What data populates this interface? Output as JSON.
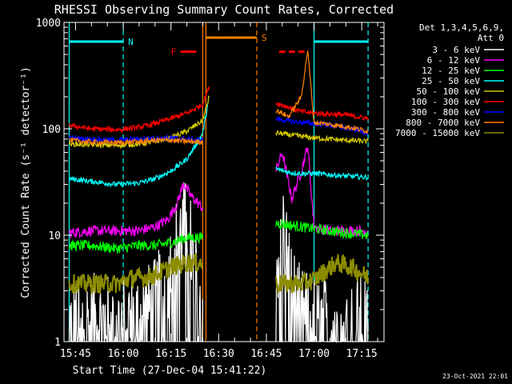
{
  "chart_data": {
    "type": "line",
    "title": "RHESSI Observing Summary Count Rates, Corrected",
    "xlabel": "Start Time (27-Dec-04 15:41:22)",
    "ylabel": "Corrected Count Rate (s⁻¹ detector⁻¹)",
    "y_scale": "log",
    "ylim": [
      1,
      1000
    ],
    "xlim": [
      "15:41:22",
      "17:22:00"
    ],
    "x_ticks": [
      "15:45",
      "16:00",
      "16:15",
      "16:30",
      "16:45",
      "17:00",
      "17:15"
    ],
    "y_ticks": [
      "1",
      "10",
      "100",
      "1000"
    ],
    "legend_title": [
      "Det 1,3,4,5,6,9,",
      "Att 0"
    ],
    "legend_position": "right",
    "footer": "23-Oct-2021 22:01",
    "series": [
      {
        "name": "3 - 6 keV",
        "color": "#ffffff",
        "segments": [
          {
            "t": [
              "15:43",
              "15:50",
              "15:58",
              "16:05",
              "16:10",
              "16:14",
              "16:17",
              "16:20",
              "16:23",
              "16:25"
            ],
            "v": [
              1.5,
              1.6,
              1.5,
              1.7,
              2.2,
              4.0,
              9.0,
              14.0,
              3.5,
              2.5
            ]
          },
          {
            "t": [
              "16:48",
              "16:50",
              "16:53",
              "16:56",
              "16:58",
              "17:00",
              "17:05",
              "17:10",
              "17:17"
            ],
            "v": [
              4.0,
              15.0,
              3.0,
              1.8,
              1.6,
              1.5,
              1.6,
              1.5,
              1.5
            ]
          }
        ]
      },
      {
        "name": "6 - 12 keV",
        "color": "#ff00ff",
        "segments": [
          {
            "t": [
              "15:43",
              "15:50",
              "15:58",
              "16:05",
              "16:10",
              "16:14",
              "16:17",
              "16:19",
              "16:21",
              "16:25"
            ],
            "v": [
              10.5,
              11.0,
              11.0,
              11.0,
              12.0,
              14.0,
              20.0,
              31.0,
              24.0,
              18.0
            ]
          },
          {
            "t": [
              "16:48",
              "16:50",
              "16:53",
              "16:56",
              "16:58",
              "17:00",
              "17:05",
              "17:10",
              "17:17"
            ],
            "v": [
              40.0,
              60.0,
              22.0,
              40.0,
              70.0,
              12.0,
              11.0,
              11.0,
              11.0
            ]
          }
        ]
      },
      {
        "name": "12 - 25 keV",
        "color": "#00ff00",
        "segments": [
          {
            "t": [
              "15:43",
              "15:50",
              "15:58",
              "16:05",
              "16:10",
              "16:15",
              "16:20",
              "16:25"
            ],
            "v": [
              8.0,
              8.0,
              7.5,
              8.0,
              8.0,
              8.5,
              9.5,
              9.5
            ]
          },
          {
            "t": [
              "16:48",
              "16:52",
              "16:56",
              "17:00",
              "17:05",
              "17:10",
              "17:17"
            ],
            "v": [
              13.0,
              12.5,
              12.0,
              11.5,
              11.0,
              10.5,
              10.0
            ]
          }
        ]
      },
      {
        "name": "25 - 50 keV",
        "color": "#00ffff",
        "segments": [
          {
            "t": [
              "15:43",
              "15:50",
              "15:58",
              "16:05",
              "16:10",
              "16:15",
              "16:20",
              "16:25",
              "16:27"
            ],
            "v": [
              34.0,
              32.0,
              30.0,
              31.0,
              34.0,
              40.0,
              52.0,
              90.0,
              200.0
            ]
          },
          {
            "t": [
              "16:48",
              "16:52",
              "16:56",
              "17:00",
              "17:05",
              "17:10",
              "17:17"
            ],
            "v": [
              42.0,
              39.0,
              38.0,
              38.0,
              37.0,
              36.0,
              35.0
            ]
          }
        ]
      },
      {
        "name": "50 - 100 keV",
        "color": "#d2c800",
        "segments": [
          {
            "t": [
              "15:43",
              "15:50",
              "15:58",
              "16:05",
              "16:10",
              "16:15",
              "16:20",
              "16:25",
              "16:27"
            ],
            "v": [
              72.0,
              71.0,
              70.0,
              72.0,
              76.0,
              82.0,
              95.0,
              120.0,
              200.0
            ]
          },
          {
            "t": [
              "16:48",
              "16:52",
              "16:56",
              "17:00",
              "17:05",
              "17:10",
              "17:17"
            ],
            "v": [
              92.0,
              88.0,
              85.0,
              82.0,
              80.0,
              78.0,
              76.0
            ]
          }
        ]
      },
      {
        "name": "100 - 300 keV",
        "color": "#ff0000",
        "segments": [
          {
            "t": [
              "15:43",
              "15:50",
              "15:58",
              "16:05",
              "16:10",
              "16:15",
              "16:20",
              "16:25",
              "16:27"
            ],
            "v": [
              108.0,
              100.0,
              98.0,
              103.0,
              112.0,
              125.0,
              140.0,
              170.0,
              250.0
            ]
          },
          {
            "t": [
              "16:48",
              "16:52",
              "16:56",
              "17:00",
              "17:05",
              "17:10",
              "17:17"
            ],
            "v": [
              175.0,
              160.0,
              145.0,
              140.0,
              138.0,
              135.0,
              125.0
            ]
          }
        ]
      },
      {
        "name": "300 - 800 keV",
        "color": "#0000ff",
        "segments": [
          {
            "t": [
              "15:43",
              "15:50",
              "15:58",
              "16:05",
              "16:10",
              "16:15",
              "16:20",
              "16:25"
            ],
            "v": [
              82.0,
              80.0,
              78.0,
              80.0,
              82.0,
              82.0,
              80.0,
              78.0
            ]
          },
          {
            "t": [
              "16:48",
              "16:52",
              "16:56",
              "17:00",
              "17:05",
              "17:10",
              "17:17"
            ],
            "v": [
              125.0,
              118.0,
              115.0,
              112.0,
              108.0,
              102.0,
              92.0
            ]
          }
        ]
      },
      {
        "name": "800 - 7000 keV",
        "color": "#ff8000",
        "segments": [
          {
            "t": [
              "15:43",
              "15:50",
              "15:58",
              "16:05",
              "16:10",
              "16:15",
              "16:20",
              "16:25"
            ],
            "v": [
              78.0,
              75.0,
              74.0,
              76.0,
              78.0,
              78.0,
              76.0,
              75.0
            ]
          },
          {
            "t": [
              "16:48",
              "16:52",
              "16:56",
              "16:58",
              "17:00",
              "17:05",
              "17:10",
              "17:17"
            ],
            "v": [
              150.0,
              130.0,
              200.0,
              550.0,
              115.0,
              110.0,
              105.0,
              95.0
            ]
          }
        ]
      },
      {
        "name": "7000 - 15000 keV",
        "color": "#8c8c00",
        "segments": [
          {
            "t": [
              "15:43",
              "15:50",
              "15:58",
              "16:03",
              "16:08",
              "16:12",
              "16:15",
              "16:20",
              "16:25"
            ],
            "v": [
              3.5,
              3.5,
              3.5,
              4.0,
              4.0,
              4.5,
              5.0,
              5.5,
              5.5
            ]
          },
          {
            "t": [
              "16:48",
              "16:52",
              "16:56",
              "17:00",
              "17:03",
              "17:07",
              "17:12",
              "17:17"
            ],
            "v": [
              3.5,
              3.5,
              3.5,
              3.8,
              4.5,
              5.5,
              5.0,
              4.0
            ]
          }
        ]
      }
    ],
    "annotations": {
      "bars": [
        {
          "label": "N",
          "color": "#00ffff",
          "t": [
            [
              "15:43",
              "16:00"
            ],
            [
              "17:00",
              "17:17"
            ]
          ],
          "v": 660
        },
        {
          "label": "F",
          "color": "#ff0000",
          "t": [
            [
              "16:18",
              "16:23"
            ],
            [
              "16:49",
              "16:57"
            ]
          ],
          "v": 530
        },
        {
          "label": "S",
          "color": "#ff8000",
          "t": [
            [
              "16:26",
              "16:42"
            ]
          ],
          "v": 720
        }
      ],
      "vlines": [
        {
          "t": "15:43",
          "color": "#00ffff",
          "style": "solid"
        },
        {
          "t": "16:00",
          "color": "#00ffff",
          "style": "dashed"
        },
        {
          "t": "16:25",
          "color": "#ff8000",
          "style": "solid"
        },
        {
          "t": "16:26",
          "color": "#ff8000",
          "style": "solid"
        },
        {
          "t": "16:42",
          "color": "#ff8000",
          "style": "dashed"
        },
        {
          "t": "17:00",
          "color": "#00ffff",
          "style": "solid"
        },
        {
          "t": "17:17",
          "color": "#00ffff",
          "style": "dashed"
        }
      ]
    }
  }
}
